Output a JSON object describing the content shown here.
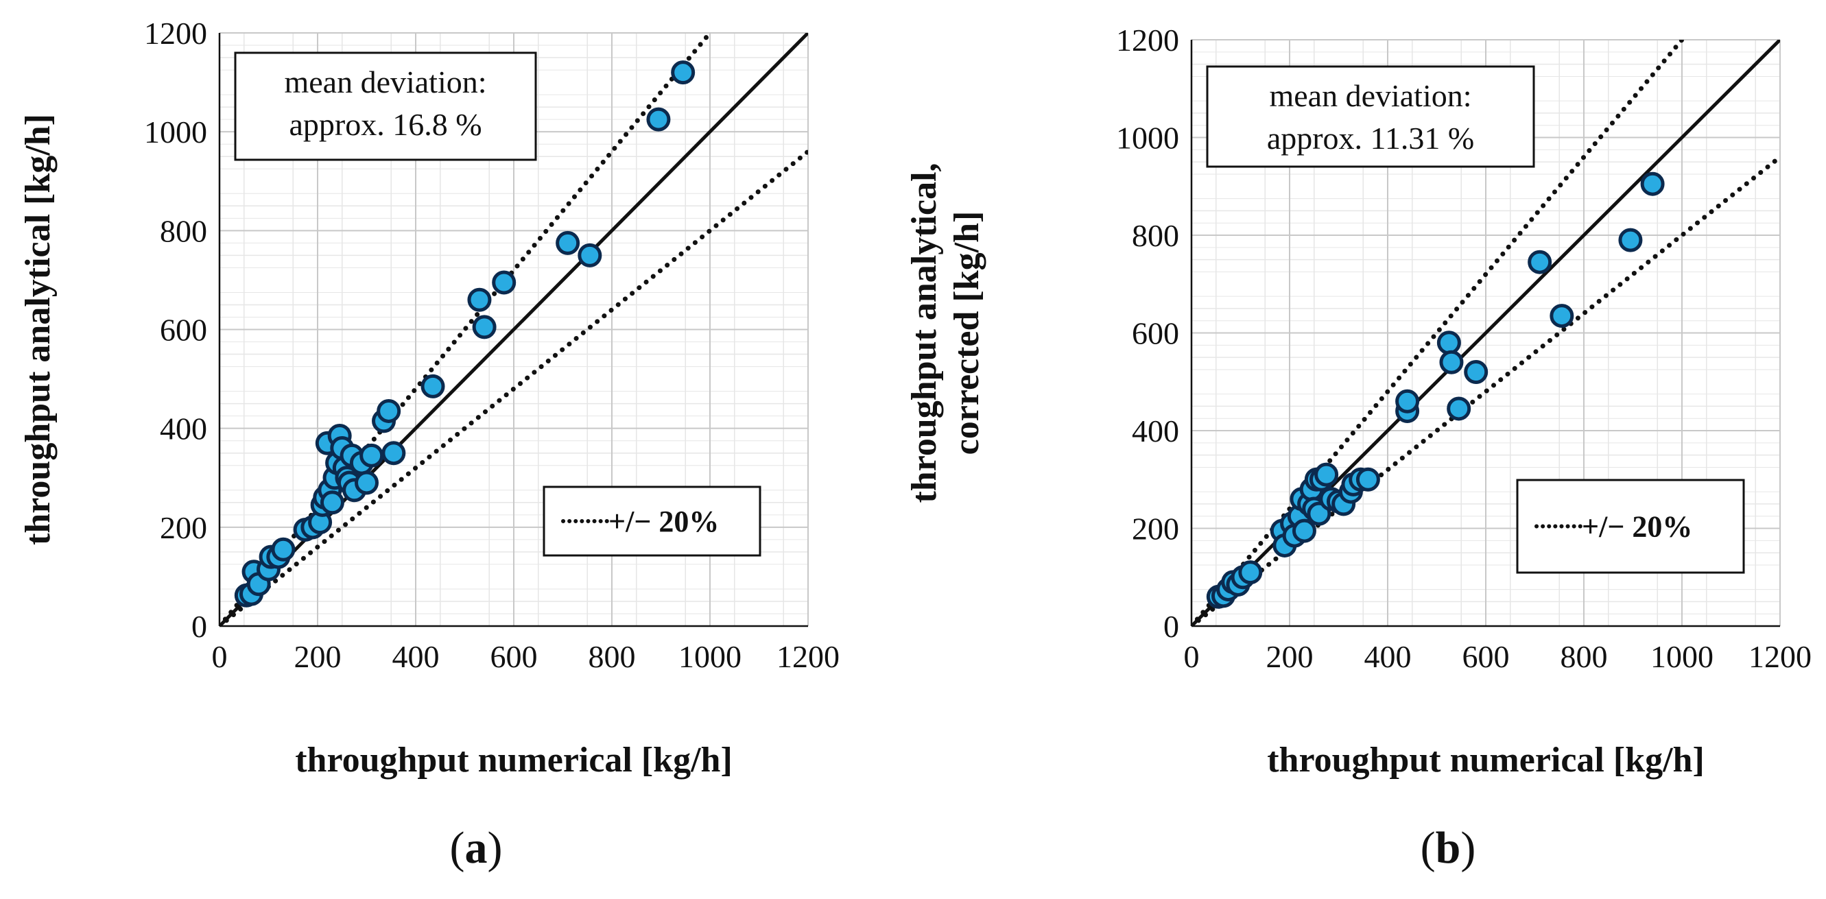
{
  "figure": {
    "panels": [
      "a",
      "b"
    ]
  },
  "colors": {
    "marker_fill": "#29abe2",
    "marker_edge": "#0c2a4e",
    "grid": "#c8c8c8",
    "minor_grid": "#e6e6e6",
    "line": "#111111"
  },
  "chart_data": [
    {
      "type": "scatter",
      "panel_label": "a",
      "title": "",
      "xlabel": "throughput numerical [kg/h]",
      "ylabel": [
        "throughput analytical [kg/h]"
      ],
      "xlim": [
        0,
        1200
      ],
      "ylim": [
        0,
        1200
      ],
      "xticks": [
        "0",
        "200",
        "400",
        "600",
        "800",
        "1000",
        "1200"
      ],
      "yticks": [
        "0",
        "200",
        "400",
        "600",
        "800",
        "1000",
        "1200"
      ],
      "annotation": [
        "mean deviation:",
        "approx. 16.8 %"
      ],
      "legend_label": "+/− 20%",
      "reference_lines": {
        "identity_slope": 1.0,
        "upper_slope": 1.2,
        "lower_slope": 0.8
      },
      "points": [
        [
          55,
          62
        ],
        [
          65,
          65
        ],
        [
          70,
          110
        ],
        [
          80,
          85
        ],
        [
          100,
          115
        ],
        [
          105,
          140
        ],
        [
          120,
          140
        ],
        [
          130,
          155
        ],
        [
          175,
          195
        ],
        [
          190,
          200
        ],
        [
          205,
          210
        ],
        [
          210,
          245
        ],
        [
          215,
          260
        ],
        [
          220,
          370
        ],
        [
          225,
          275
        ],
        [
          230,
          250
        ],
        [
          235,
          300
        ],
        [
          240,
          330
        ],
        [
          245,
          385
        ],
        [
          250,
          360
        ],
        [
          255,
          320
        ],
        [
          260,
          300
        ],
        [
          265,
          290
        ],
        [
          270,
          345
        ],
        [
          275,
          275
        ],
        [
          290,
          330
        ],
        [
          300,
          290
        ],
        [
          310,
          345
        ],
        [
          335,
          415
        ],
        [
          345,
          435
        ],
        [
          355,
          350
        ],
        [
          435,
          485
        ],
        [
          530,
          660
        ],
        [
          540,
          605
        ],
        [
          580,
          695
        ],
        [
          710,
          775
        ],
        [
          755,
          750
        ],
        [
          895,
          1025
        ],
        [
          945,
          1120
        ]
      ]
    },
    {
      "type": "scatter",
      "panel_label": "b",
      "title": "",
      "xlabel": "throughput numerical [kg/h]",
      "ylabel": [
        "throughput analytical,",
        "corrected [kg/h]"
      ],
      "xlim": [
        0,
        1200
      ],
      "ylim": [
        0,
        1200
      ],
      "xticks": [
        "0",
        "200",
        "400",
        "600",
        "800",
        "1000",
        "1200"
      ],
      "yticks": [
        "0",
        "200",
        "400",
        "600",
        "800",
        "1000",
        "1200"
      ],
      "annotation": [
        "mean deviation:",
        "approx. 11.31 %"
      ],
      "legend_label": "+/− 20%",
      "reference_lines": {
        "identity_slope": 1.0,
        "upper_slope": 1.2,
        "lower_slope": 0.8
      },
      "points": [
        [
          55,
          60
        ],
        [
          65,
          62
        ],
        [
          75,
          75
        ],
        [
          85,
          90
        ],
        [
          95,
          85
        ],
        [
          105,
          100
        ],
        [
          120,
          110
        ],
        [
          185,
          195
        ],
        [
          190,
          165
        ],
        [
          205,
          210
        ],
        [
          210,
          185
        ],
        [
          220,
          225
        ],
        [
          225,
          260
        ],
        [
          230,
          195
        ],
        [
          240,
          250
        ],
        [
          245,
          280
        ],
        [
          250,
          240
        ],
        [
          255,
          300
        ],
        [
          260,
          230
        ],
        [
          265,
          300
        ],
        [
          275,
          310
        ],
        [
          285,
          260
        ],
        [
          300,
          255
        ],
        [
          310,
          250
        ],
        [
          325,
          275
        ],
        [
          330,
          290
        ],
        [
          345,
          300
        ],
        [
          360,
          300
        ],
        [
          440,
          440
        ],
        [
          440,
          460
        ],
        [
          525,
          580
        ],
        [
          530,
          540
        ],
        [
          545,
          445
        ],
        [
          580,
          520
        ],
        [
          710,
          745
        ],
        [
          755,
          635
        ],
        [
          895,
          790
        ],
        [
          940,
          905
        ]
      ]
    }
  ]
}
